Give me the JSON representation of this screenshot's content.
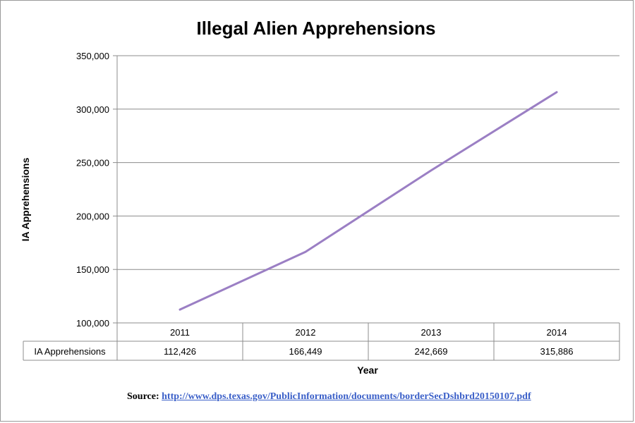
{
  "chart_data": {
    "type": "line",
    "title": "Illegal Alien Apprehensions",
    "xlabel": "Year",
    "ylabel": "IA Apprehensions",
    "categories": [
      "2011",
      "2012",
      "2013",
      "2014"
    ],
    "series": [
      {
        "name": "IA Apprehensions",
        "values": [
          112426,
          166449,
          242669,
          315886
        ],
        "labels": [
          "112,426",
          "166,449",
          "242,669",
          "315,886"
        ],
        "color": "#9b7fc4"
      }
    ],
    "ylim": [
      100000,
      350000
    ],
    "yticks": [
      100000,
      150000,
      200000,
      250000,
      300000,
      350000
    ],
    "ytick_labels": [
      "100,000",
      "150,000",
      "200,000",
      "250,000",
      "300,000",
      "350,000"
    ],
    "grid": true,
    "data_table": true
  },
  "source": {
    "label": "Source:",
    "url_text": "http://www.dps.texas.gov/PublicInformation/documents/borderSecDshbrd20150107.pdf"
  }
}
